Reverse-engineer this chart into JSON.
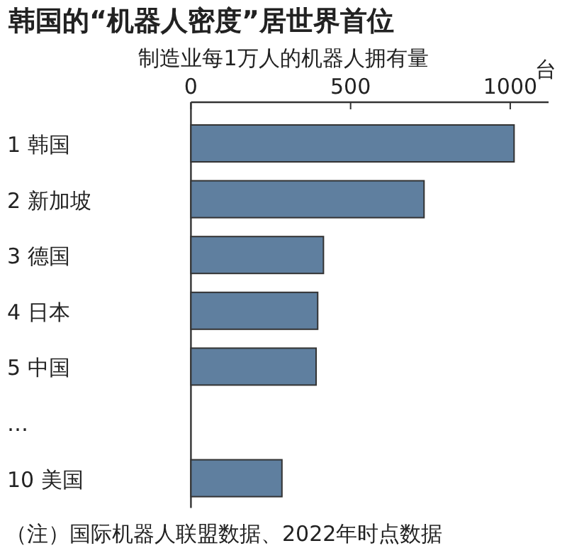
{
  "chart_data": {
    "type": "bar",
    "orientation": "horizontal",
    "title": "韩国的“机器人密度”居世界首位",
    "subtitle": "制造业每1万人的机器人拥有量",
    "xlabel": "台",
    "categories": [
      "1  韩国",
      "2  新加坡",
      "3  德国",
      "4  日本",
      "5  中国",
      "…",
      "10 美国"
    ],
    "values": [
      1012,
      730,
      415,
      397,
      392,
      null,
      285
    ],
    "color": "#5f7f9f",
    "xlim": [
      0,
      1120
    ],
    "xticks": [
      0,
      500,
      1000
    ],
    "annotations": [
      "（注）国际机器人联盟数据、2022年时点数据"
    ]
  }
}
